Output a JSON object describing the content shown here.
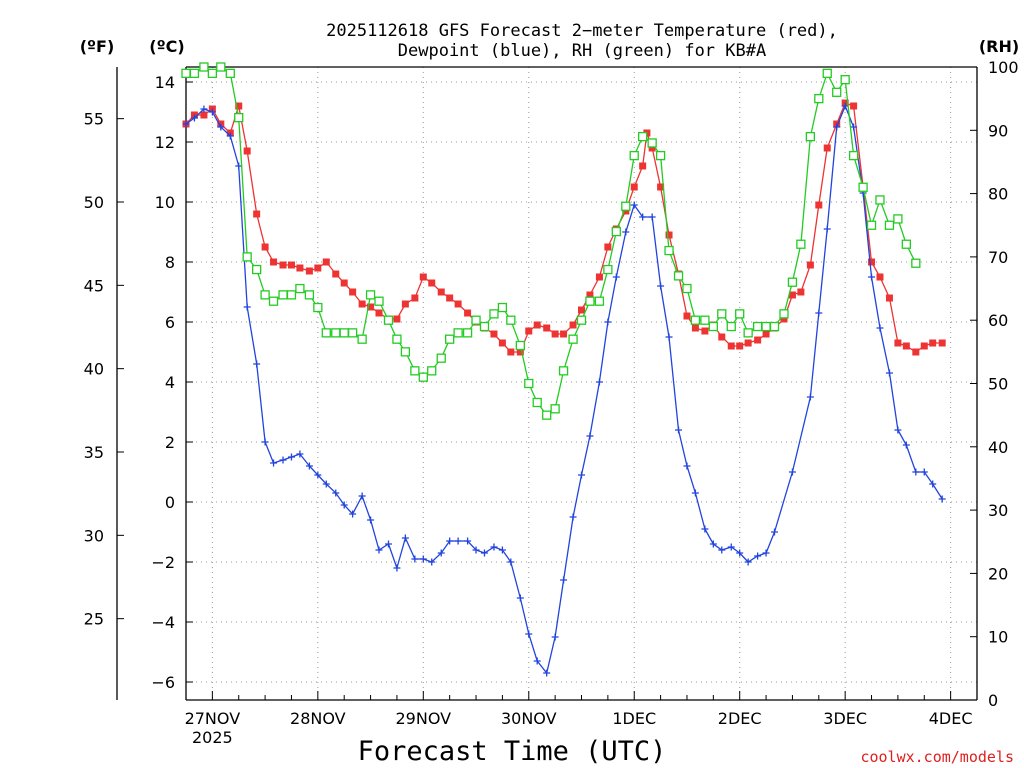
{
  "chart_data": {
    "type": "line",
    "title_lines": [
      "2025112618 GFS Forecast 2−meter Temperature (red),",
      "Dewpoint (blue), RH (green) for KB#A"
    ],
    "xlabel": "Forecast Time (UTC)",
    "credit": "coolwx.com/models",
    "unit_labels": {
      "fahrenheit": "(ºF)",
      "celsius": "(ºC)",
      "rh": "(RH)"
    },
    "x_range_days": [
      -0.25,
      7.25
    ],
    "x_ticks": [
      {
        "day": 0,
        "label": "27NOV",
        "sub": "2025"
      },
      {
        "day": 1,
        "label": "28NOV"
      },
      {
        "day": 2,
        "label": "29NOV"
      },
      {
        "day": 3,
        "label": "30NOV"
      },
      {
        "day": 4,
        "label": "1DEC"
      },
      {
        "day": 5,
        "label": "2DEC"
      },
      {
        "day": 6,
        "label": "3DEC"
      },
      {
        "day": 7,
        "label": "4DEC"
      }
    ],
    "ylim_c": [
      -6.6,
      14.5
    ],
    "c_ticks": [
      14,
      12,
      10,
      8,
      6,
      4,
      2,
      0,
      -2,
      -4,
      -6
    ],
    "c_tick_labels": [
      "14",
      "12",
      "10",
      "8",
      "6",
      "4",
      "2",
      "0",
      "−2",
      "−4",
      "−6"
    ],
    "f_ticks": [
      55,
      50,
      45,
      40,
      35,
      30,
      25
    ],
    "rh_ticks": [
      100,
      90,
      80,
      70,
      60,
      50,
      40,
      30,
      20,
      10,
      0
    ],
    "series": [
      {
        "name": "Temperature",
        "units": "C",
        "color": "#ee3333",
        "marker": "filled-square",
        "points": [
          [
            -0.25,
            12.6
          ],
          [
            -0.17,
            12.9
          ],
          [
            -0.08,
            12.9
          ],
          [
            0,
            13.1
          ],
          [
            0.08,
            12.6
          ],
          [
            0.17,
            12.3
          ],
          [
            0.25,
            13.2
          ],
          [
            0.33,
            11.7
          ],
          [
            0.42,
            9.6
          ],
          [
            0.5,
            8.5
          ],
          [
            0.58,
            8.0
          ],
          [
            0.67,
            7.9
          ],
          [
            0.75,
            7.9
          ],
          [
            0.83,
            7.8
          ],
          [
            0.92,
            7.7
          ],
          [
            1.0,
            7.8
          ],
          [
            1.08,
            8.0
          ],
          [
            1.17,
            7.6
          ],
          [
            1.25,
            7.3
          ],
          [
            1.33,
            7.0
          ],
          [
            1.42,
            6.6
          ],
          [
            1.5,
            6.5
          ],
          [
            1.58,
            6.3
          ],
          [
            1.67,
            6.1
          ],
          [
            1.75,
            6.1
          ],
          [
            1.83,
            6.6
          ],
          [
            1.92,
            6.8
          ],
          [
            2.0,
            7.5
          ],
          [
            2.08,
            7.3
          ],
          [
            2.17,
            7.0
          ],
          [
            2.25,
            6.8
          ],
          [
            2.33,
            6.6
          ],
          [
            2.42,
            6.3
          ],
          [
            2.5,
            6.0
          ],
          [
            2.58,
            5.8
          ],
          [
            2.67,
            5.6
          ],
          [
            2.75,
            5.3
          ],
          [
            2.83,
            5.0
          ],
          [
            2.92,
            5.0
          ],
          [
            3.0,
            5.7
          ],
          [
            3.08,
            5.9
          ],
          [
            3.17,
            5.8
          ],
          [
            3.25,
            5.6
          ],
          [
            3.33,
            5.6
          ],
          [
            3.42,
            5.9
          ],
          [
            3.5,
            6.4
          ],
          [
            3.58,
            6.9
          ],
          [
            3.67,
            7.5
          ],
          [
            3.75,
            8.5
          ],
          [
            3.83,
            9.1
          ],
          [
            3.92,
            9.7
          ],
          [
            4.0,
            10.5
          ],
          [
            4.08,
            11.2
          ],
          [
            4.12,
            12.3
          ],
          [
            4.17,
            11.8
          ],
          [
            4.25,
            10.5
          ],
          [
            4.33,
            8.9
          ],
          [
            4.42,
            7.6
          ],
          [
            4.5,
            6.2
          ],
          [
            4.58,
            5.8
          ],
          [
            4.67,
            5.7
          ],
          [
            4.75,
            5.9
          ],
          [
            4.83,
            5.5
          ],
          [
            4.92,
            5.2
          ],
          [
            5.0,
            5.2
          ],
          [
            5.08,
            5.3
          ],
          [
            5.17,
            5.4
          ],
          [
            5.25,
            5.6
          ],
          [
            5.33,
            5.8
          ],
          [
            5.42,
            6.1
          ],
          [
            5.5,
            6.9
          ],
          [
            5.58,
            7.0
          ],
          [
            5.67,
            7.9
          ],
          [
            5.75,
            9.9
          ],
          [
            5.83,
            11.8
          ],
          [
            5.92,
            12.6
          ],
          [
            6.0,
            13.3
          ],
          [
            6.08,
            13.2
          ],
          [
            6.17,
            10.5
          ],
          [
            6.25,
            8.0
          ],
          [
            6.33,
            7.5
          ],
          [
            6.42,
            6.8
          ],
          [
            6.5,
            5.3
          ],
          [
            6.58,
            5.2
          ],
          [
            6.67,
            5.0
          ],
          [
            6.75,
            5.2
          ],
          [
            6.83,
            5.3
          ],
          [
            6.92,
            5.3
          ]
        ]
      },
      {
        "name": "Dewpoint",
        "units": "C",
        "color": "#2244dd",
        "marker": "plus",
        "points": [
          [
            -0.25,
            12.6
          ],
          [
            -0.17,
            12.8
          ],
          [
            -0.08,
            13.1
          ],
          [
            0,
            13.0
          ],
          [
            0.08,
            12.5
          ],
          [
            0.17,
            12.2
          ],
          [
            0.25,
            11.2
          ],
          [
            0.33,
            6.5
          ],
          [
            0.42,
            4.6
          ],
          [
            0.5,
            2.0
          ],
          [
            0.58,
            1.3
          ],
          [
            0.67,
            1.4
          ],
          [
            0.75,
            1.5
          ],
          [
            0.83,
            1.6
          ],
          [
            0.92,
            1.2
          ],
          [
            1.0,
            0.9
          ],
          [
            1.08,
            0.6
          ],
          [
            1.17,
            0.3
          ],
          [
            1.25,
            -0.1
          ],
          [
            1.33,
            -0.4
          ],
          [
            1.42,
            0.2
          ],
          [
            1.5,
            -0.6
          ],
          [
            1.58,
            -1.6
          ],
          [
            1.67,
            -1.4
          ],
          [
            1.75,
            -2.2
          ],
          [
            1.83,
            -1.2
          ],
          [
            1.92,
            -1.9
          ],
          [
            2.0,
            -1.9
          ],
          [
            2.08,
            -2.0
          ],
          [
            2.17,
            -1.7
          ],
          [
            2.25,
            -1.3
          ],
          [
            2.33,
            -1.3
          ],
          [
            2.42,
            -1.3
          ],
          [
            2.5,
            -1.6
          ],
          [
            2.58,
            -1.7
          ],
          [
            2.67,
            -1.5
          ],
          [
            2.75,
            -1.6
          ],
          [
            2.83,
            -2.0
          ],
          [
            2.92,
            -3.2
          ],
          [
            3.0,
            -4.4
          ],
          [
            3.08,
            -5.3
          ],
          [
            3.17,
            -5.7
          ],
          [
            3.25,
            -4.5
          ],
          [
            3.33,
            -2.6
          ],
          [
            3.42,
            -0.5
          ],
          [
            3.5,
            0.9
          ],
          [
            3.58,
            2.2
          ],
          [
            3.67,
            4.0
          ],
          [
            3.75,
            6.0
          ],
          [
            3.83,
            7.5
          ],
          [
            3.92,
            9.0
          ],
          [
            4.0,
            9.9
          ],
          [
            4.08,
            9.5
          ],
          [
            4.17,
            9.5
          ],
          [
            4.25,
            7.2
          ],
          [
            4.33,
            5.5
          ],
          [
            4.42,
            2.4
          ],
          [
            4.5,
            1.2
          ],
          [
            4.58,
            0.3
          ],
          [
            4.67,
            -0.9
          ],
          [
            4.75,
            -1.4
          ],
          [
            4.83,
            -1.6
          ],
          [
            4.92,
            -1.5
          ],
          [
            5.0,
            -1.7
          ],
          [
            5.08,
            -2.0
          ],
          [
            5.17,
            -1.8
          ],
          [
            5.25,
            -1.7
          ],
          [
            5.33,
            -1.0
          ],
          [
            5.5,
            1.0
          ],
          [
            5.67,
            3.5
          ],
          [
            5.75,
            6.3
          ],
          [
            5.83,
            9.1
          ],
          [
            5.92,
            12.5
          ],
          [
            6.0,
            13.2
          ],
          [
            6.08,
            12.5
          ],
          [
            6.17,
            10.3
          ],
          [
            6.25,
            7.5
          ],
          [
            6.33,
            5.8
          ],
          [
            6.42,
            4.3
          ],
          [
            6.5,
            2.4
          ],
          [
            6.58,
            1.9
          ],
          [
            6.67,
            1.0
          ],
          [
            6.75,
            1.0
          ],
          [
            6.83,
            0.6
          ],
          [
            6.92,
            0.1
          ]
        ]
      },
      {
        "name": "Relative Humidity",
        "units": "RH %",
        "color": "#22cc22",
        "marker": "open-square",
        "points": [
          [
            -0.25,
            99
          ],
          [
            -0.17,
            99
          ],
          [
            -0.08,
            100
          ],
          [
            0,
            99
          ],
          [
            0.08,
            100
          ],
          [
            0.17,
            99
          ],
          [
            0.25,
            92
          ],
          [
            0.33,
            70
          ],
          [
            0.42,
            68
          ],
          [
            0.5,
            64
          ],
          [
            0.58,
            63
          ],
          [
            0.67,
            64
          ],
          [
            0.75,
            64
          ],
          [
            0.83,
            65
          ],
          [
            0.92,
            64
          ],
          [
            1.0,
            62
          ],
          [
            1.08,
            58
          ],
          [
            1.17,
            58
          ],
          [
            1.25,
            58
          ],
          [
            1.33,
            58
          ],
          [
            1.42,
            57
          ],
          [
            1.5,
            64
          ],
          [
            1.58,
            63
          ],
          [
            1.67,
            60
          ],
          [
            1.75,
            57
          ],
          [
            1.83,
            55
          ],
          [
            1.92,
            52
          ],
          [
            2.0,
            51
          ],
          [
            2.08,
            52
          ],
          [
            2.17,
            54
          ],
          [
            2.25,
            57
          ],
          [
            2.33,
            58
          ],
          [
            2.42,
            58
          ],
          [
            2.5,
            60
          ],
          [
            2.58,
            59
          ],
          [
            2.67,
            61
          ],
          [
            2.75,
            62
          ],
          [
            2.83,
            60
          ],
          [
            2.92,
            56
          ],
          [
            3.0,
            50
          ],
          [
            3.08,
            47
          ],
          [
            3.17,
            45
          ],
          [
            3.25,
            46
          ],
          [
            3.33,
            52
          ],
          [
            3.42,
            57
          ],
          [
            3.5,
            60
          ],
          [
            3.58,
            63
          ],
          [
            3.67,
            63
          ],
          [
            3.75,
            68
          ],
          [
            3.83,
            74
          ],
          [
            3.92,
            78
          ],
          [
            4.0,
            86
          ],
          [
            4.08,
            89
          ],
          [
            4.17,
            88
          ],
          [
            4.25,
            86
          ],
          [
            4.33,
            71
          ],
          [
            4.42,
            67
          ],
          [
            4.5,
            65
          ],
          [
            4.58,
            60
          ],
          [
            4.67,
            60
          ],
          [
            4.75,
            59
          ],
          [
            4.83,
            61
          ],
          [
            4.92,
            59
          ],
          [
            5.0,
            61
          ],
          [
            5.08,
            58
          ],
          [
            5.17,
            59
          ],
          [
            5.25,
            59
          ],
          [
            5.33,
            59
          ],
          [
            5.42,
            61
          ],
          [
            5.5,
            66
          ],
          [
            5.58,
            72
          ],
          [
            5.67,
            89
          ],
          [
            5.75,
            95
          ],
          [
            5.83,
            99
          ],
          [
            5.92,
            96
          ],
          [
            6.0,
            98
          ],
          [
            6.08,
            86
          ],
          [
            6.17,
            81
          ],
          [
            6.25,
            75
          ],
          [
            6.33,
            79
          ],
          [
            6.42,
            75
          ],
          [
            6.5,
            76
          ],
          [
            6.58,
            72
          ],
          [
            6.67,
            69
          ]
        ]
      }
    ]
  }
}
